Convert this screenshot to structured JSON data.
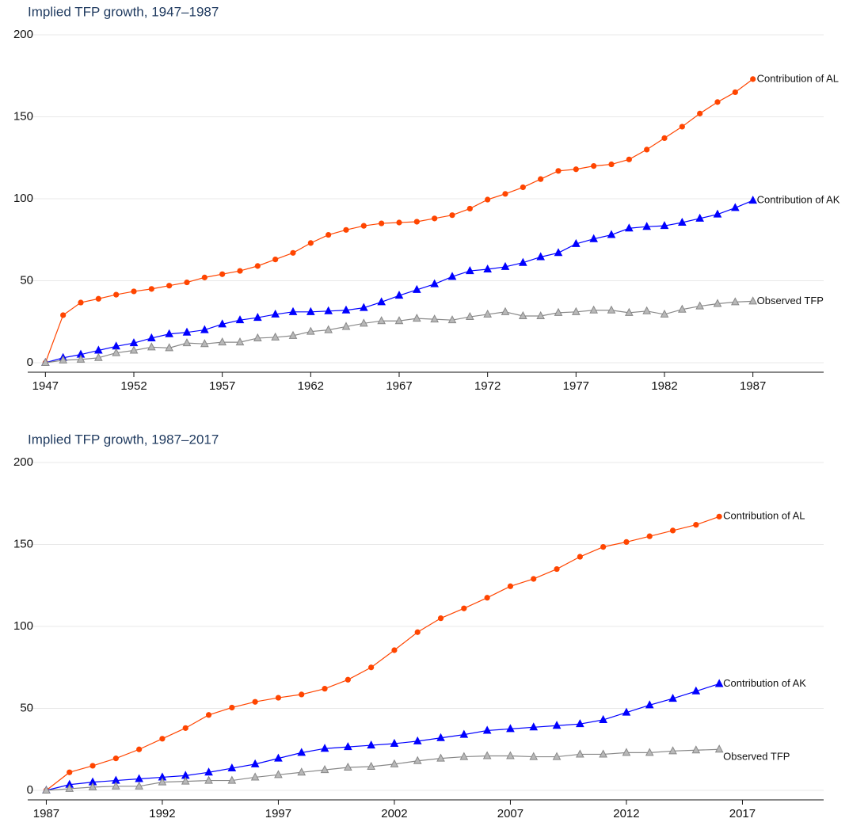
{
  "chart_data": [
    {
      "type": "line",
      "title": "Implied TFP growth, 1947–1987",
      "x": [
        1947,
        1948,
        1949,
        1950,
        1951,
        1952,
        1953,
        1954,
        1955,
        1956,
        1957,
        1958,
        1959,
        1960,
        1961,
        1962,
        1963,
        1964,
        1965,
        1966,
        1967,
        1968,
        1969,
        1970,
        1971,
        1972,
        1973,
        1974,
        1975,
        1976,
        1977,
        1978,
        1979,
        1980,
        1981,
        1982,
        1983,
        1984,
        1985,
        1986,
        1987
      ],
      "xlim": [
        1946,
        1991
      ],
      "xticks": [
        1947,
        1952,
        1957,
        1962,
        1967,
        1972,
        1977,
        1982,
        1987
      ],
      "ylim": [
        0,
        200
      ],
      "yticks": [
        0,
        50,
        100,
        150,
        200
      ],
      "grid": true,
      "series": [
        {
          "name": "Contribution of AL",
          "color": "#ff4500",
          "marker": "circle",
          "values": [
            0,
            29,
            36.7,
            39,
            41.5,
            43.5,
            45,
            47,
            49,
            52,
            54,
            56,
            59,
            63,
            67,
            73,
            78,
            81,
            83.5,
            85,
            85.5,
            86,
            88,
            90,
            94,
            99.5,
            103,
            107,
            112,
            117,
            118,
            120,
            121,
            124,
            130,
            137,
            144,
            152,
            159,
            165,
            173
          ]
        },
        {
          "name": "Contribution of AK",
          "color": "#0000ff",
          "marker": "triangle",
          "values": [
            0,
            3,
            5,
            7.5,
            10,
            12,
            15,
            17.5,
            18.5,
            20,
            23.5,
            26,
            27.5,
            29.5,
            31,
            31,
            31.5,
            32,
            33.5,
            37,
            41,
            44.5,
            48,
            52.5,
            56,
            57,
            58.5,
            61,
            64.5,
            67,
            72.5,
            75.5,
            78,
            82,
            83,
            83.5,
            85.5,
            88,
            90.5,
            94.5,
            99
          ]
        },
        {
          "name": "Observed TFP",
          "color": "#888888",
          "marker": "open-triangle",
          "values": [
            0,
            1.5,
            2,
            3,
            6,
            7.5,
            9.5,
            9,
            12,
            11.5,
            12.5,
            12.5,
            15,
            15.5,
            16.5,
            19,
            20,
            22,
            24,
            25.5,
            25.5,
            27,
            26.5,
            26,
            28,
            29.5,
            31,
            28.5,
            28.5,
            30.5,
            31,
            32,
            32,
            30.5,
            31.5,
            29.5,
            32.5,
            34.5,
            36,
            37,
            37.5
          ]
        }
      ]
    },
    {
      "type": "line",
      "title": "Implied TFP growth, 1987–2017",
      "x": [
        1987,
        1988,
        1989,
        1990,
        1991,
        1992,
        1993,
        1994,
        1995,
        1996,
        1997,
        1998,
        1999,
        2000,
        2001,
        2002,
        2003,
        2004,
        2005,
        2006,
        2007,
        2008,
        2009,
        2010,
        2011,
        2012,
        2013,
        2014,
        2015,
        2016
      ],
      "xlim": [
        1986.2,
        2020.5
      ],
      "xticks": [
        1987,
        1992,
        1997,
        2002,
        2007,
        2012,
        2017
      ],
      "ylim": [
        0,
        200
      ],
      "yticks": [
        0,
        50,
        100,
        150,
        200
      ],
      "grid": true,
      "series": [
        {
          "name": "Contribution of AL",
          "color": "#ff4500",
          "marker": "circle",
          "values": [
            0,
            11,
            15,
            19.5,
            25,
            31.5,
            38,
            46,
            50.5,
            54,
            56.5,
            58.5,
            62,
            67.5,
            75,
            85.5,
            96.5,
            105,
            111,
            117.5,
            124.5,
            129,
            135,
            142.5,
            148.5,
            151.5,
            155,
            158.5,
            162,
            167
          ]
        },
        {
          "name": "Contribution of AK",
          "color": "#0000ff",
          "marker": "triangle",
          "values": [
            0,
            3.5,
            5,
            6,
            7,
            8,
            9,
            11,
            13.5,
            16,
            19.5,
            23,
            25.5,
            26.5,
            27.5,
            28.5,
            30,
            32,
            34,
            36.5,
            37.5,
            38.5,
            39.5,
            40.5,
            43,
            47.5,
            52,
            56,
            60.5,
            65
          ]
        },
        {
          "name": "Observed TFP",
          "color": "#888888",
          "marker": "open-triangle",
          "values": [
            0,
            1,
            2,
            2.5,
            2.5,
            5,
            5.5,
            6,
            6,
            8,
            9.5,
            11,
            12.5,
            14,
            14.5,
            16,
            18,
            19.5,
            20.5,
            21,
            21,
            20.5,
            20.5,
            22,
            22,
            23,
            23,
            24,
            24.5,
            25
          ]
        }
      ]
    }
  ]
}
